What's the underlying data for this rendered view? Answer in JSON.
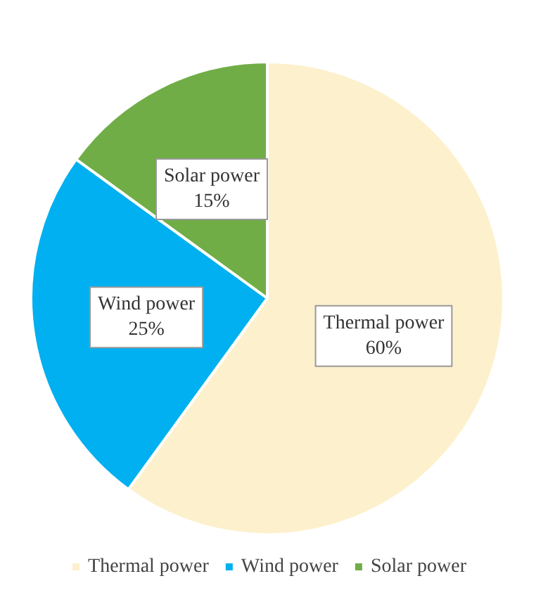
{
  "chart_data": {
    "type": "pie",
    "categories": [
      "Thermal power",
      "Wind power",
      "Solar power"
    ],
    "values": [
      60,
      25,
      15
    ],
    "colors": [
      "#fdf0cc",
      "#00b0f0",
      "#70ad47"
    ],
    "value_labels": [
      "60%",
      "25%",
      "15%"
    ],
    "legend": "bottom"
  }
}
